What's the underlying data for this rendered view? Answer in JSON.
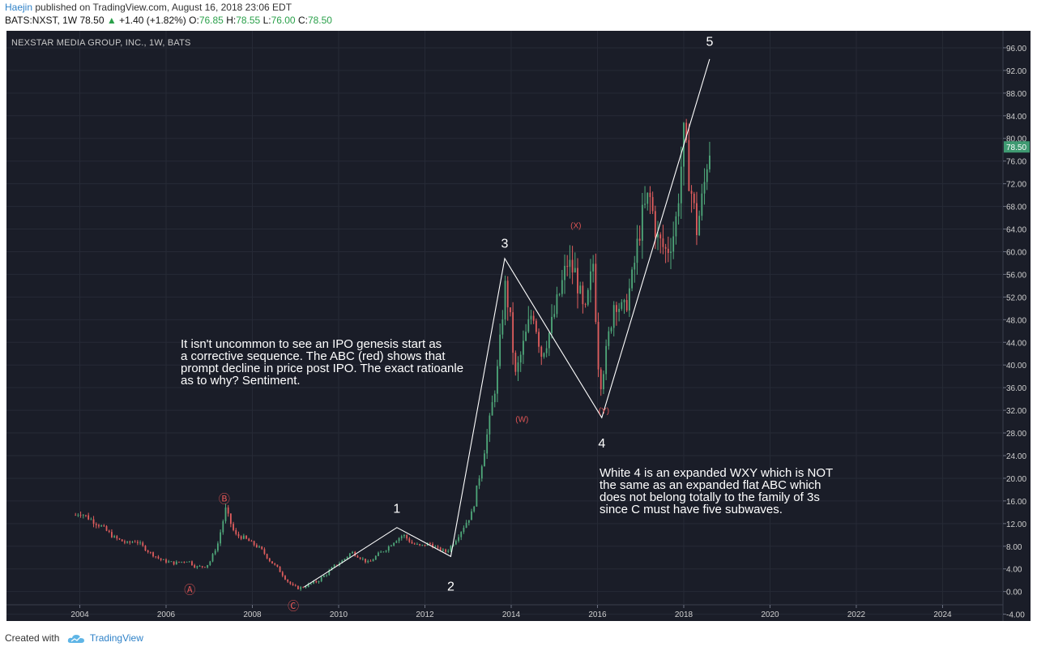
{
  "header": {
    "author": "Haejin",
    "published": " published on TradingView.com, August 16, 2018 23:06 EDT",
    "ohlc_prefix": "BATS:NXST, 1W 78.50 ",
    "change_icon": "triangle-up-icon",
    "change": "+1.40 (+1.82%)",
    "open_label": "O:",
    "open": "76.85",
    "high_label": "H:",
    "high": "78.55",
    "low_label": "L:",
    "low": "76.00",
    "close_label": "C:",
    "close": "78.50"
  },
  "colors": {
    "background": "#1a1d28",
    "grid": "#262a36",
    "axis_text": "#cfcfcf",
    "candle_up": "#4fa87a",
    "candle_down": "#e05d5d",
    "wave_lines": "#ffffff",
    "red_labels": "#e05555",
    "price_tag": "#3f9a72"
  },
  "chart_data": {
    "type": "line",
    "title": "NEXSTAR MEDIA GROUP, INC., 1W, BATS",
    "xlabel": "",
    "ylabel": "",
    "xlim": [
      2002.3,
      2025.4
    ],
    "ylim": [
      -5.2,
      99
    ],
    "grid": true,
    "x_ticks": [
      "2004",
      "2006",
      "2008",
      "2010",
      "2012",
      "2014",
      "2016",
      "2018",
      "2020",
      "2022",
      "2024"
    ],
    "y_ticks": [
      "96.00",
      "92.00",
      "88.00",
      "84.00",
      "80.00",
      "76.00",
      "72.00",
      "68.00",
      "64.00",
      "60.00",
      "56.00",
      "52.00",
      "48.00",
      "44.00",
      "40.00",
      "36.00",
      "32.00",
      "28.00",
      "24.00",
      "20.00",
      "16.00",
      "12.00",
      "8.00",
      "4.00",
      "0.00",
      "-4.00"
    ],
    "last_price_label": "78.50",
    "last_price": 78.5,
    "price_series": [
      [
        2003.9,
        13.5
      ],
      [
        2004.0,
        14.0
      ],
      [
        2004.2,
        13.0
      ],
      [
        2004.5,
        11.5
      ],
      [
        2004.8,
        9.5
      ],
      [
        2005.1,
        8.5
      ],
      [
        2005.3,
        9.0
      ],
      [
        2005.6,
        7.0
      ],
      [
        2005.9,
        5.5
      ],
      [
        2006.2,
        5.0
      ],
      [
        2006.5,
        5.5
      ],
      [
        2006.7,
        4.3
      ],
      [
        2006.9,
        4.5
      ],
      [
        2007.0,
        5.0
      ],
      [
        2007.2,
        8.5
      ],
      [
        2007.38,
        14.5
      ],
      [
        2007.5,
        12.0
      ],
      [
        2007.6,
        10.0
      ],
      [
        2007.8,
        9.5
      ],
      [
        2008.0,
        8.5
      ],
      [
        2008.2,
        7.5
      ],
      [
        2008.4,
        5.5
      ],
      [
        2008.6,
        4.0
      ],
      [
        2008.8,
        2.0
      ],
      [
        2008.95,
        0.8
      ],
      [
        2009.1,
        0.6
      ],
      [
        2009.3,
        1.2
      ],
      [
        2009.5,
        1.8
      ],
      [
        2009.7,
        3.0
      ],
      [
        2009.9,
        4.5
      ],
      [
        2010.1,
        5.5
      ],
      [
        2010.3,
        7.0
      ],
      [
        2010.5,
        6.0
      ],
      [
        2010.7,
        5.0
      ],
      [
        2010.9,
        6.5
      ],
      [
        2011.1,
        7.5
      ],
      [
        2011.3,
        9.0
      ],
      [
        2011.5,
        10.0
      ],
      [
        2011.7,
        8.5
      ],
      [
        2011.9,
        8.0
      ],
      [
        2012.1,
        8.5
      ],
      [
        2012.3,
        7.5
      ],
      [
        2012.5,
        7.0
      ],
      [
        2012.7,
        9.0
      ],
      [
        2012.9,
        11.5
      ],
      [
        2013.1,
        14.0
      ],
      [
        2013.3,
        22.0
      ],
      [
        2013.5,
        30.0
      ],
      [
        2013.7,
        40.0
      ],
      [
        2013.85,
        54.0
      ],
      [
        2013.95,
        50.0
      ],
      [
        2014.1,
        38.0
      ],
      [
        2014.3,
        44.0
      ],
      [
        2014.5,
        50.0
      ],
      [
        2014.7,
        42.0
      ],
      [
        2014.9,
        46.0
      ],
      [
        2015.1,
        52.0
      ],
      [
        2015.3,
        58.0
      ],
      [
        2015.5,
        56.0
      ],
      [
        2015.7,
        48.0
      ],
      [
        2015.9,
        58.0
      ],
      [
        2016.05,
        36.0
      ],
      [
        2016.2,
        42.0
      ],
      [
        2016.4,
        52.0
      ],
      [
        2016.6,
        49.0
      ],
      [
        2016.8,
        55.0
      ],
      [
        2017.0,
        65.0
      ],
      [
        2017.2,
        70.0
      ],
      [
        2017.4,
        62.0
      ],
      [
        2017.6,
        60.0
      ],
      [
        2017.8,
        64.0
      ],
      [
        2018.0,
        80.0
      ],
      [
        2018.15,
        72.0
      ],
      [
        2018.3,
        64.0
      ],
      [
        2018.45,
        70.0
      ],
      [
        2018.55,
        76.85
      ],
      [
        2018.6,
        78.5
      ]
    ],
    "wave_lines": [
      [
        [
          2009.2,
          0.8
        ],
        [
          2011.35,
          11.3
        ],
        [
          2012.6,
          6.2
        ],
        [
          2013.85,
          58.8
        ],
        [
          2016.1,
          30.7
        ],
        [
          2018.6,
          94.0
        ]
      ]
    ],
    "labels": {
      "white_waves": [
        "1",
        "2",
        "3",
        "4",
        "5"
      ],
      "red_waves": [
        "Ⓐ",
        "Ⓑ",
        "Ⓒ",
        "(W)",
        "(X)",
        "(Y)"
      ]
    },
    "annotations": {
      "note_ipo": "It isn't uncommon to see an IPO genesis start as\na corrective sequence. The ABC (red) shows that\nprompt decline in price post IPO. The exact ratioanle\nas to why? Sentiment.",
      "note_wxy": "White 4 is an expanded WXY which is NOT\nthe same as an expanded flat ABC which\ndoes not belong totally to the family of 3s\nsince C must have five subwaves."
    }
  },
  "footer": {
    "created_with": "Created with",
    "logo_icon": "tradingview-cloud-icon",
    "brand": "TradingView"
  }
}
